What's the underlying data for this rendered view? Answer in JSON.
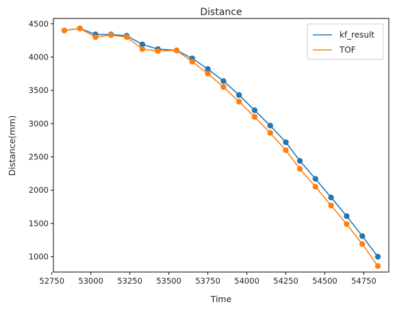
{
  "chart_data": {
    "type": "line",
    "title": "Distance",
    "xlabel": "Time",
    "ylabel": "Distance(mm)",
    "xlim": [
      52760,
      54910
    ],
    "ylim": [
      770,
      4580
    ],
    "xticks": [
      52750,
      53000,
      53250,
      53500,
      53750,
      54000,
      54250,
      54500,
      54750
    ],
    "yticks": [
      1000,
      1500,
      2000,
      2500,
      3000,
      3500,
      4000,
      4500
    ],
    "grid": false,
    "legend_position": "top-right",
    "markers": true,
    "x": [
      52830,
      52930,
      53030,
      53130,
      53230,
      53330,
      53430,
      53550,
      53650,
      53750,
      53850,
      53950,
      54050,
      54150,
      54250,
      54340,
      54440,
      54540,
      54640,
      54740,
      54840
    ],
    "series": [
      {
        "name": "kf_result",
        "color": "#1f77b4",
        "values": [
          4400,
          4430,
          4340,
          4340,
          4320,
          4190,
          4120,
          4100,
          3980,
          3820,
          3640,
          3430,
          3200,
          2970,
          2720,
          2440,
          2170,
          1890,
          1610,
          1310,
          1000
        ]
      },
      {
        "name": "TOF",
        "color": "#ff7f0e",
        "values": [
          4400,
          4430,
          4300,
          4330,
          4300,
          4120,
          4090,
          4100,
          3930,
          3750,
          3550,
          3330,
          3100,
          2860,
          2600,
          2320,
          2050,
          1770,
          1490,
          1190,
          860
        ]
      }
    ]
  }
}
